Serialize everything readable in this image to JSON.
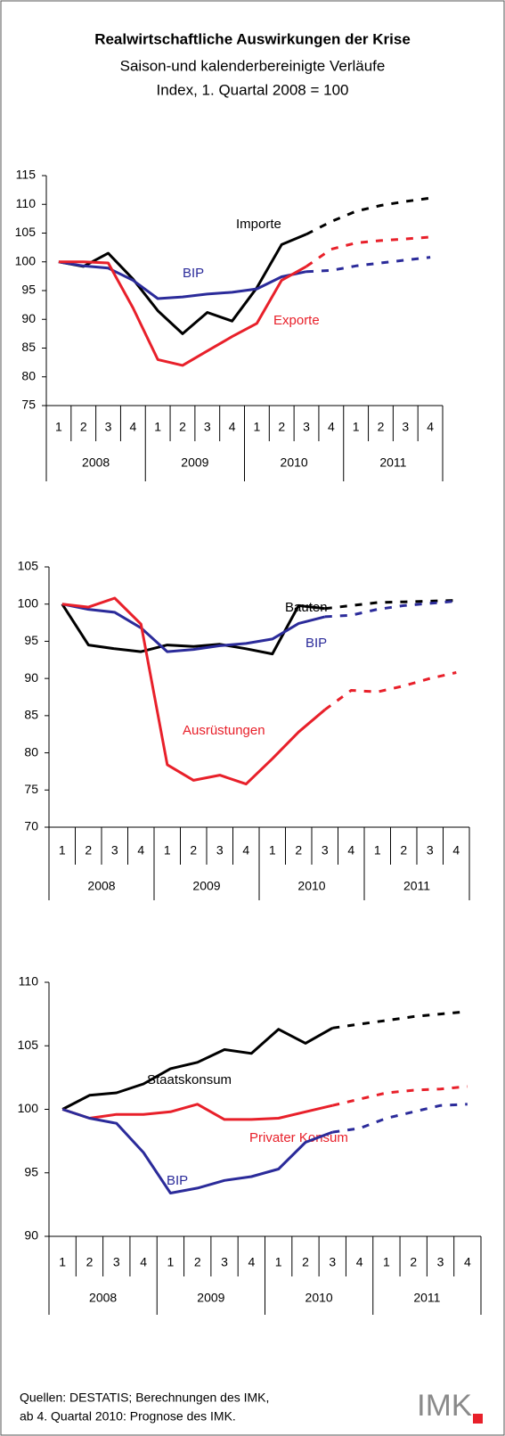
{
  "header": {
    "title": "Realwirtschaftliche Auswirkungen der Krise",
    "subtitle": [
      "Saison-und kalenderbereinigte Verläufe",
      "Index, 1. Quartal 2008 = 100"
    ]
  },
  "chart_data": [
    {
      "type": "line",
      "categories": [
        "1",
        "2",
        "3",
        "4",
        "1",
        "2",
        "3",
        "4",
        "1",
        "2",
        "3",
        "4",
        "1",
        "2",
        "3",
        "4"
      ],
      "groups": [
        "2008",
        "2009",
        "2010",
        "2011"
      ],
      "ylim": [
        75,
        115
      ],
      "yticks": [
        75,
        80,
        85,
        90,
        95,
        100,
        105,
        110,
        115
      ],
      "dashed_from": 10,
      "series": [
        {
          "name": "Importe",
          "color": "#000000",
          "values": [
            100,
            99.2,
            101.5,
            97,
            91.5,
            87.5,
            91.2,
            89.7,
            95.5,
            103,
            104.8,
            107,
            108.8,
            109.8,
            110.5,
            111.1
          ]
        },
        {
          "name": "BIP",
          "color": "#2b2b9a",
          "values": [
            100,
            99.3,
            98.9,
            96.8,
            93.6,
            93.9,
            94.4,
            94.7,
            95.3,
            97.4,
            98.3,
            98.5,
            99.3,
            99.8,
            100.3,
            100.8
          ]
        },
        {
          "name": "Exporte",
          "color": "#e8202a",
          "values": [
            100,
            100,
            99.8,
            92,
            83,
            82,
            84.5,
            87,
            89.3,
            96.8,
            99.2,
            102.2,
            103.3,
            103.7,
            104,
            104.3
          ]
        }
      ]
    },
    {
      "type": "line",
      "categories": [
        "1",
        "2",
        "3",
        "4",
        "1",
        "2",
        "3",
        "4",
        "1",
        "2",
        "3",
        "4",
        "1",
        "2",
        "3",
        "4"
      ],
      "groups": [
        "2008",
        "2009",
        "2010",
        "2011"
      ],
      "ylim": [
        70,
        105
      ],
      "yticks": [
        70,
        75,
        80,
        85,
        90,
        95,
        100,
        105
      ],
      "dashed_from": 10,
      "series": [
        {
          "name": "Bauten",
          "color": "#000000",
          "values": [
            100,
            94.5,
            94,
            93.6,
            94.5,
            94.3,
            94.6,
            94,
            93.3,
            99.8,
            99.4,
            99.8,
            100.2,
            100.3,
            100.4,
            100.5
          ]
        },
        {
          "name": "BIP",
          "color": "#2b2b9a",
          "values": [
            100,
            99.3,
            98.9,
            96.8,
            93.6,
            93.9,
            94.4,
            94.7,
            95.3,
            97.4,
            98.3,
            98.5,
            99.3,
            99.8,
            100.1,
            100.4
          ]
        },
        {
          "name": "Ausrüstungen",
          "color": "#e8202a",
          "values": [
            100,
            99.6,
            100.8,
            97.3,
            78.4,
            76.3,
            77,
            75.8,
            79.2,
            82.8,
            85.8,
            88.4,
            88.2,
            89,
            90,
            90.8
          ]
        }
      ]
    },
    {
      "type": "line",
      "categories": [
        "1",
        "2",
        "3",
        "4",
        "1",
        "2",
        "3",
        "4",
        "1",
        "2",
        "3",
        "4",
        "1",
        "2",
        "3",
        "4"
      ],
      "groups": [
        "2008",
        "2009",
        "2010",
        "2011"
      ],
      "ylim": [
        90,
        110
      ],
      "yticks": [
        90,
        95,
        100,
        105,
        110
      ],
      "dashed_from": 10,
      "series": [
        {
          "name": "Staatskonsum",
          "color": "#000000",
          "values": [
            100,
            101.1,
            101.3,
            102,
            103.2,
            103.7,
            104.7,
            104.4,
            106.3,
            105.2,
            106.4,
            106.7,
            107,
            107.3,
            107.5,
            107.7
          ]
        },
        {
          "name": "Privater Konsum",
          "color": "#e8202a",
          "values": [
            100,
            99.3,
            99.6,
            99.6,
            99.8,
            100.4,
            99.2,
            99.2,
            99.3,
            99.8,
            100.3,
            100.8,
            101.3,
            101.5,
            101.6,
            101.8
          ]
        },
        {
          "name": "BIP",
          "color": "#2b2b9a",
          "values": [
            100,
            99.3,
            98.9,
            96.6,
            93.4,
            93.8,
            94.4,
            94.7,
            95.3,
            97.4,
            98.2,
            98.5,
            99.3,
            99.8,
            100.3,
            100.4
          ]
        }
      ]
    }
  ],
  "footer": {
    "source": [
      "Quellen: DESTATIS; Berechnungen des IMK,",
      "ab 4. Quartal 2010: Prognose des IMK."
    ],
    "logo": "IMK"
  }
}
